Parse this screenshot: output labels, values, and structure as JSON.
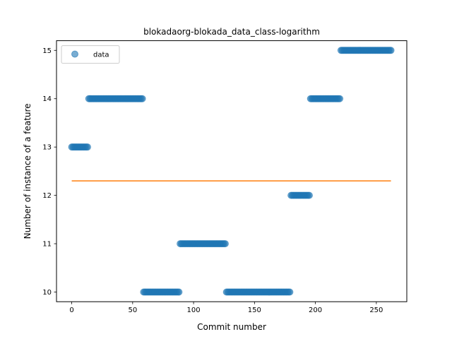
{
  "chart_data": {
    "type": "scatter",
    "title": "blokadaorg-blokada_data_class-logarithm",
    "xlabel": "Commit number",
    "ylabel": "Number of instance of a feature",
    "xlim": [
      -12.5,
      275
    ],
    "ylim": [
      9.8,
      15.2
    ],
    "xticks": [
      0,
      50,
      100,
      150,
      200,
      250
    ],
    "yticks": [
      10,
      11,
      12,
      13,
      14,
      15
    ],
    "legend": {
      "position": "top-left",
      "entries": [
        "data"
      ]
    },
    "series": [
      {
        "name": "data",
        "kind": "points",
        "color": "#1f77b4",
        "segments": [
          {
            "x_start": 0,
            "x_end": 14,
            "y": 13
          },
          {
            "x_start": 14,
            "x_end": 59,
            "y": 14
          },
          {
            "x_start": 59,
            "x_end": 89,
            "y": 10
          },
          {
            "x_start": 89,
            "x_end": 127,
            "y": 11
          },
          {
            "x_start": 127,
            "x_end": 180,
            "y": 10
          },
          {
            "x_start": 180,
            "x_end": 196,
            "y": 12
          },
          {
            "x_start": 196,
            "x_end": 221,
            "y": 14
          },
          {
            "x_start": 221,
            "x_end": 263,
            "y": 15
          }
        ]
      },
      {
        "kind": "line",
        "color": "#ff7f0e",
        "x": [
          0,
          262
        ],
        "y": [
          12.3,
          12.3
        ]
      }
    ]
  }
}
